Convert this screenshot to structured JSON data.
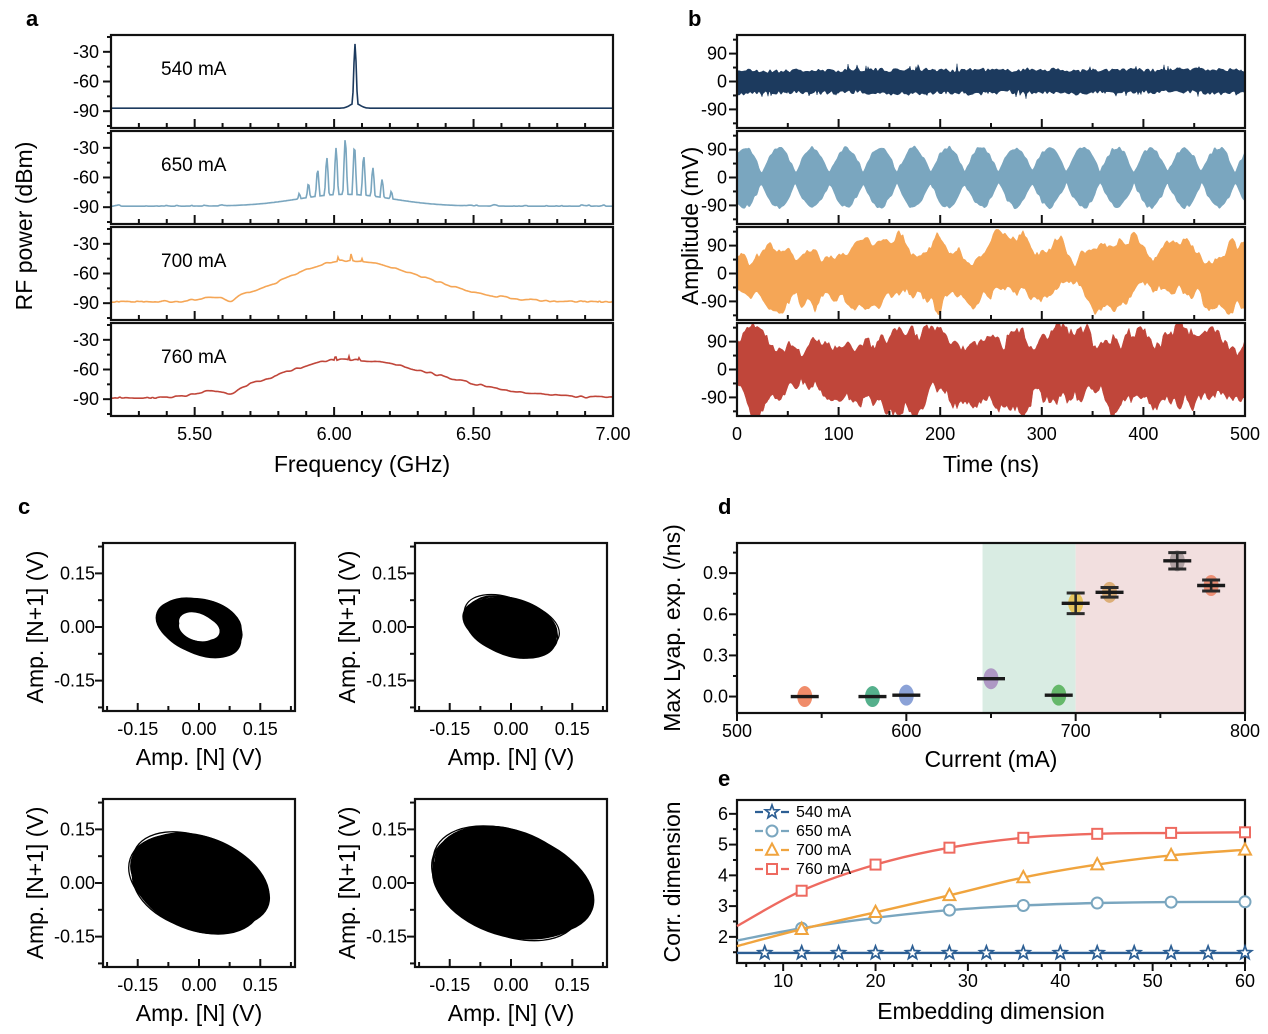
{
  "figure": {
    "panel_labels": [
      "a",
      "b",
      "c",
      "d",
      "e"
    ]
  },
  "colors": {
    "navy": "#1c3a5e",
    "steel_blue": "#7aa6bf",
    "orange": "#f5a656",
    "dark_red": "#c0463a",
    "coral_red": "#ee6a60",
    "star_blue": "#2d5f94",
    "frame": "#111111",
    "region_green": "#d9ece3",
    "region_pink": "#f2dfdf"
  },
  "chart_data": [
    {
      "panel": "a",
      "type": "line",
      "xlabel": "Frequency (GHz)",
      "ylabel": "RF power (dBm)",
      "xlim": [
        5.2,
        7.0
      ],
      "xticks": {
        "values": [
          5.5,
          6.0,
          6.5,
          7.0
        ],
        "labels": [
          "5.50",
          "6.00",
          "6.50",
          "7.00"
        ]
      },
      "yticks": {
        "values": [
          -30,
          -60,
          -90
        ],
        "labels": [
          "-30",
          "-60",
          "-90"
        ]
      },
      "ylim": [
        -107,
        -13
      ],
      "grid": false,
      "traces": [
        {
          "label": "540 mA",
          "color": "#1c3a5e",
          "type": "single",
          "baseline_dbm": -89,
          "peak_ghz": 6.075,
          "peak_dbm": -22
        },
        {
          "label": "650 mA",
          "color": "#7aa6bf",
          "type": "comb",
          "baseline_dbm": -89,
          "center_ghz": 6.04,
          "spacing_ghz": 0.033,
          "peak_dbm": [
            -76,
            -66,
            -52,
            -40,
            -30,
            -21,
            -28,
            -38,
            -50,
            -62,
            -74
          ],
          "hump_db": 12,
          "hump_sigma": 0.17
        },
        {
          "label": "700 mA",
          "color": "#f5a656",
          "type": "broad",
          "baseline_dbm": -89,
          "center_ghz": 6.05,
          "peak_dbm": -47,
          "spike_dbm": -37,
          "dip_ghz": 5.63
        },
        {
          "label": "760 mA",
          "color": "#c0463a",
          "type": "broad",
          "baseline_dbm": -89,
          "center_ghz": 6.04,
          "peak_dbm": -50,
          "spike_dbm": -44,
          "dip_ghz": 5.63
        }
      ]
    },
    {
      "panel": "b",
      "type": "line",
      "xlabel": "Time (ns)",
      "ylabel": "Amplitude (mV)",
      "xlim": [
        0,
        500
      ],
      "xticks": {
        "values": [
          0,
          100,
          200,
          300,
          400,
          500
        ],
        "labels": [
          "0",
          "100",
          "200",
          "300",
          "400",
          "500"
        ]
      },
      "yticks": {
        "values": [
          90,
          0,
          -90
        ],
        "labels": [
          "90",
          "0",
          "-90"
        ]
      },
      "ylim": [
        -150,
        150
      ],
      "grid": false,
      "traces": [
        {
          "color": "#1c3a5e",
          "kind": "noise",
          "band_mV": 36
        },
        {
          "color": "#7aa6bf",
          "kind": "beats",
          "min_mV": 20,
          "max_mV": 97,
          "period_ns": 33.3
        },
        {
          "color": "#f5a656",
          "kind": "chaotic",
          "base_mV": 25,
          "max_mV": 135,
          "roughness": 0.5
        },
        {
          "color": "#c0463a",
          "kind": "chaotic",
          "base_mV": 38,
          "max_mV": 142,
          "roughness": 0.85
        }
      ]
    },
    {
      "panel": "c",
      "type": "scatter",
      "xlabel": "Amp. [N] (V)",
      "ylabel": "Amp. [N+1] (V)",
      "ticks": {
        "values": [
          -0.15,
          0.0,
          0.15
        ],
        "labels": [
          "-0.15",
          "0.00",
          "0.15"
        ]
      },
      "lim": [
        -0.235,
        0.235
      ],
      "marker_color": "#000000",
      "subplots": [
        {
          "shape": "ring",
          "rx": 0.095,
          "ry": 0.064,
          "hole_rx": 0.044,
          "hole_ry": 0.03,
          "rot_deg": 18
        },
        {
          "shape": "blob",
          "rx": 0.105,
          "ry": 0.068,
          "rot_deg": 20
        },
        {
          "shape": "blob",
          "rx": 0.165,
          "ry": 0.115,
          "rot_deg": 21
        },
        {
          "shape": "blob",
          "rx": 0.19,
          "ry": 0.132,
          "rot_deg": 20
        }
      ]
    },
    {
      "panel": "d",
      "type": "scatter",
      "xlabel": "Current (mA)",
      "ylabel": "Max Lyap. exp. (/ns)",
      "xlim": [
        500,
        800
      ],
      "xticks": {
        "values": [
          500,
          600,
          700,
          800
        ],
        "labels": [
          "500",
          "600",
          "700",
          "800"
        ]
      },
      "yticks": {
        "values": [
          0.0,
          0.3,
          0.6,
          0.9
        ],
        "labels": [
          "0.0",
          "0.3",
          "0.6",
          "0.9"
        ]
      },
      "ylim": [
        -0.12,
        1.12
      ],
      "regions": [
        {
          "from": 645,
          "to": 700,
          "color": "#d9ece3"
        },
        {
          "from": 700,
          "to": 800,
          "color": "#f2dfdf"
        }
      ],
      "points": [
        {
          "current": 540,
          "value": 0.0,
          "err": 0,
          "color": "#ee7f5a"
        },
        {
          "current": 580,
          "value": 0.0,
          "err": 0,
          "color": "#43a77f"
        },
        {
          "current": 600,
          "value": 0.01,
          "err": 0,
          "color": "#7e98d3"
        },
        {
          "current": 650,
          "value": 0.13,
          "err": 0,
          "color": "#a98fc0"
        },
        {
          "current": 690,
          "value": 0.01,
          "err": 0,
          "color": "#58b25c"
        },
        {
          "current": 700,
          "value": 0.68,
          "err": 0.075,
          "color": "#e7c250"
        },
        {
          "current": 720,
          "value": 0.76,
          "err": 0.035,
          "color": "#d9a96c"
        },
        {
          "current": 760,
          "value": 0.99,
          "err": 0.06,
          "color": "#a79a9b"
        },
        {
          "current": 780,
          "value": 0.81,
          "err": 0.04,
          "color": "#ec8668"
        }
      ]
    },
    {
      "panel": "e",
      "type": "line",
      "xlabel": "Embedding dimension",
      "ylabel": "Corr. dimension",
      "xlim": [
        5,
        60
      ],
      "xticks": {
        "values": [
          10,
          20,
          30,
          40,
          50,
          60
        ],
        "labels": [
          "10",
          "20",
          "30",
          "40",
          "50",
          "60"
        ]
      },
      "yticks": {
        "values": [
          2,
          3,
          4,
          5,
          6
        ],
        "labels": [
          "2",
          "3",
          "4",
          "5",
          "6"
        ]
      },
      "ylim": [
        1.15,
        6.45
      ],
      "legend_position": "top-left",
      "series": [
        {
          "name": "540 mA",
          "color": "#2d5f94",
          "marker": "star",
          "x": [
            5,
            8,
            12,
            16,
            20,
            24,
            28,
            32,
            36,
            40,
            44,
            48,
            52,
            56,
            60
          ],
          "y": [
            1.48,
            1.48,
            1.48,
            1.48,
            1.48,
            1.48,
            1.48,
            1.48,
            1.48,
            1.48,
            1.48,
            1.48,
            1.48,
            1.48,
            1.48
          ]
        },
        {
          "name": "650 mA",
          "color": "#7aa6bf",
          "marker": "circle",
          "x": [
            5,
            12,
            20,
            28,
            36,
            44,
            52,
            60
          ],
          "y": [
            1.88,
            2.28,
            2.62,
            2.87,
            3.02,
            3.1,
            3.13,
            3.14
          ]
        },
        {
          "name": "700 mA",
          "color": "#f0a43e",
          "marker": "triangle",
          "x": [
            5,
            12,
            20,
            28,
            36,
            44,
            52,
            60
          ],
          "y": [
            1.7,
            2.25,
            2.8,
            3.35,
            3.93,
            4.35,
            4.65,
            4.83
          ]
        },
        {
          "name": "760 mA",
          "color": "#ee6a60",
          "marker": "square",
          "x": [
            5,
            12,
            20,
            28,
            36,
            44,
            52,
            60
          ],
          "y": [
            2.35,
            3.5,
            4.35,
            4.9,
            5.22,
            5.35,
            5.38,
            5.4
          ]
        }
      ]
    }
  ]
}
